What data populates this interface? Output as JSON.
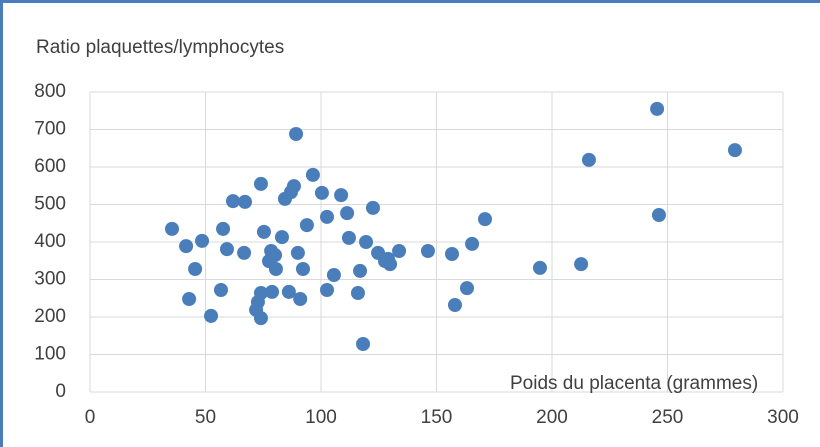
{
  "chart_data": {
    "type": "scatter",
    "title": "Ratio plaquettes/lymphocytes",
    "x_label": "Poids du placenta (grammes)",
    "color": "#4a7ebb",
    "grid": true,
    "xlim": [
      0,
      300
    ],
    "xticks": [
      0,
      50,
      100,
      150,
      200,
      250,
      300
    ],
    "ylim": [
      0,
      800
    ],
    "yticks": [
      0,
      100,
      200,
      300,
      400,
      500,
      600,
      700,
      800
    ],
    "x": [
      35.5,
      41.6,
      45.5,
      42.9,
      48.5,
      52.4,
      56.7,
      57.6,
      59.3,
      61.9,
      67.1,
      66.7,
      74,
      75.3,
      74,
      71.9,
      72.7,
      74,
      78.4,
      77.5,
      80.1,
      78.8,
      80.5,
      83.1,
      84.4,
      87,
      88.3,
      89.2,
      90,
      86.1,
      91,
      92.2,
      93.9,
      96.5,
      100.4,
      102.6,
      102.6,
      105.6,
      108.7,
      111.3,
      112.1,
      116,
      116.9,
      118.2,
      119.5,
      122.5,
      124.7,
      127.7,
      129,
      129.9,
      133.8,
      146.3,
      156.7,
      158,
      163.2,
      165.4,
      171,
      194.8,
      212.6,
      216,
      245.5,
      246.3,
      279.2
    ],
    "values": [
      435,
      389,
      328,
      248,
      403,
      203,
      272,
      435,
      381,
      509,
      507,
      371,
      555,
      427,
      264,
      219,
      240,
      197,
      376,
      349,
      365,
      267,
      328,
      413,
      515,
      533,
      549,
      688,
      371,
      267,
      248,
      328,
      445,
      579,
      531,
      467,
      272,
      312,
      525,
      477,
      411,
      264,
      323,
      128,
      400,
      491,
      371,
      349,
      355,
      341,
      376,
      376,
      368,
      232,
      277,
      395,
      461,
      331,
      341,
      619,
      755,
      472,
      645
    ]
  }
}
